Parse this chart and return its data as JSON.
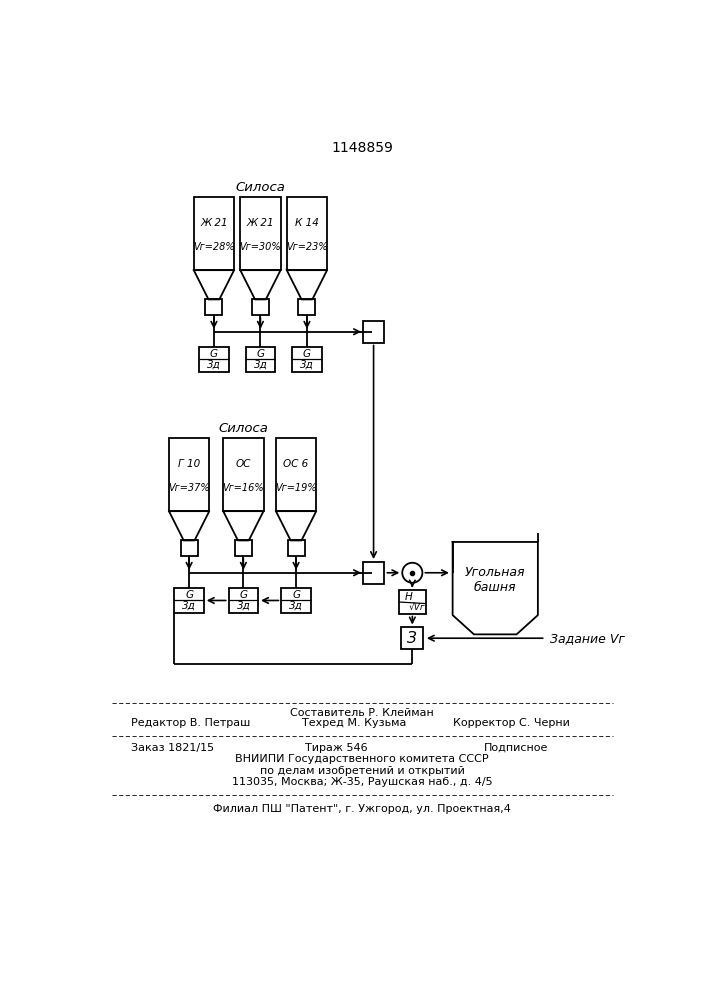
{
  "title_number": "1148859",
  "bg_color": "#ffffff",
  "top_silos_label": "Силоса",
  "bottom_silos_label": "Силоса",
  "top_silos": [
    {
      "name": "Ж 21",
      "vr": "28"
    },
    {
      "name": "Ж 21",
      "vr": "30"
    },
    {
      "name": "К 14",
      "vr": "23"
    }
  ],
  "bottom_silos": [
    {
      "name": "Г 10",
      "vr": "37"
    },
    {
      "name": "ОС",
      "vr": "16"
    },
    {
      "name": "ОС 6",
      "vr": "19"
    }
  ],
  "tower_label": "Угольная\nбашня",
  "zadanie_label": "Задание Vг",
  "footer_line1a": "Редактор В. Петраш",
  "footer_line1b": "Составитель Р. Клейман",
  "footer_line1c": "Техред М. Кузьма",
  "footer_line1d": "Корректор С. Черни",
  "footer_line2a": "Заказ 1821/15",
  "footer_line2b": "Тираж 546",
  "footer_line2c": "Подписное",
  "footer_line3": "ВНИИПИ Государственного комитета СССР",
  "footer_line4": "по делам изобретений и открытий",
  "footer_line5": "113035, Москва; Ж-35, Раушская наб., д. 4/5",
  "footer_line6": "Филиал ПШ \"Патент\", г. Ужгород, ул. Проектная,4"
}
